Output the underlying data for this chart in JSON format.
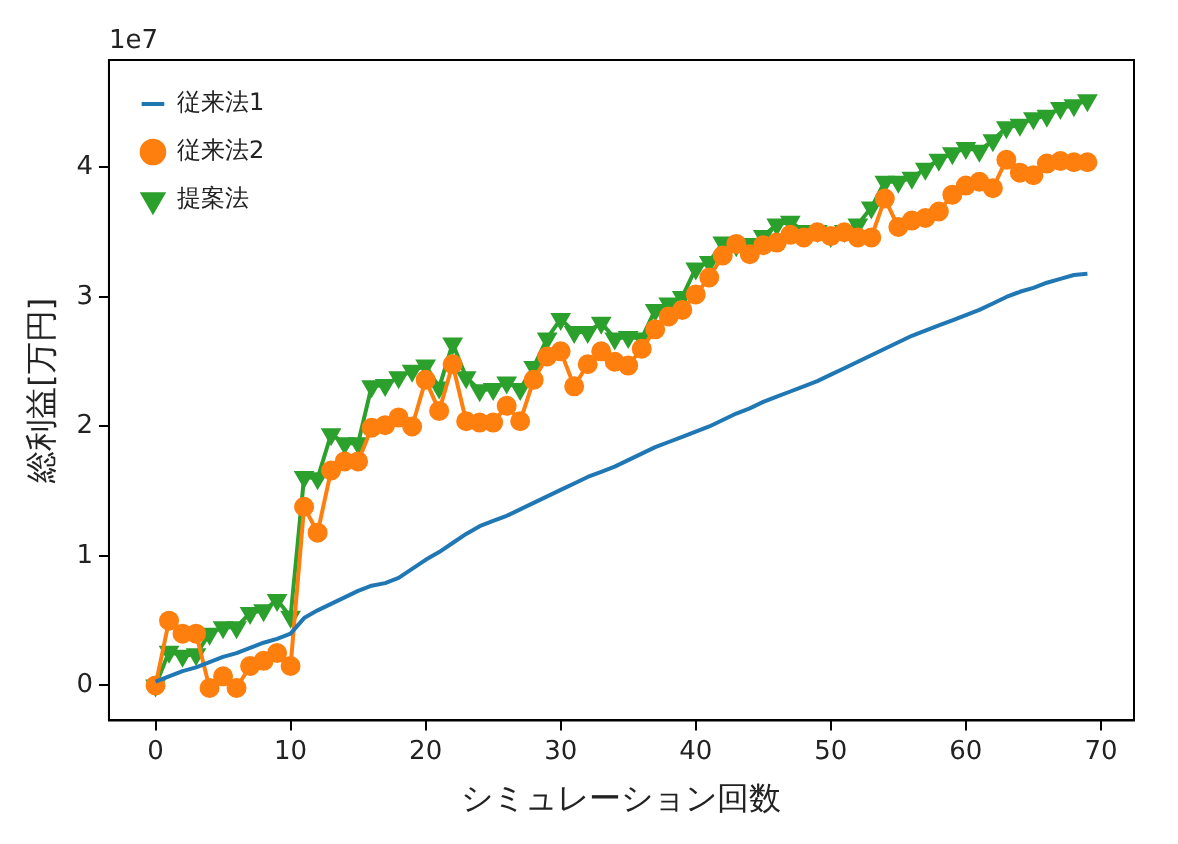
{
  "chart_data": {
    "type": "line",
    "xlabel": "シミュレーション回数",
    "ylabel": "総利益[万円]",
    "annotations": [
      "1e7"
    ],
    "x": [
      0,
      1,
      2,
      3,
      4,
      5,
      6,
      7,
      8,
      9,
      10,
      11,
      12,
      13,
      14,
      15,
      16,
      17,
      18,
      19,
      20,
      21,
      22,
      23,
      24,
      25,
      26,
      27,
      28,
      29,
      30,
      31,
      32,
      33,
      34,
      35,
      36,
      37,
      38,
      39,
      40,
      41,
      42,
      43,
      44,
      45,
      46,
      47,
      48,
      49,
      50,
      51,
      52,
      53,
      54,
      55,
      56,
      57,
      58,
      59,
      60,
      61,
      62,
      63,
      64,
      65,
      66,
      67,
      68,
      69
    ],
    "xlim": [
      -3.45,
      72.45
    ],
    "xticks": [
      0,
      10,
      20,
      30,
      40,
      50,
      60,
      70
    ],
    "ylim": [
      -0.27,
      4.83
    ],
    "yticks": [
      0,
      1,
      2,
      3,
      4
    ],
    "grid": false,
    "legend": "top left",
    "series": [
      {
        "name": "従来法1",
        "color": "#1f77b4",
        "marker": "none",
        "values": [
          0.03,
          0.07,
          0.11,
          0.14,
          0.18,
          0.22,
          0.25,
          0.29,
          0.33,
          0.36,
          0.4,
          0.52,
          0.58,
          0.63,
          0.68,
          0.73,
          0.77,
          0.79,
          0.83,
          0.9,
          0.97,
          1.03,
          1.1,
          1.17,
          1.23,
          1.27,
          1.31,
          1.36,
          1.41,
          1.46,
          1.51,
          1.56,
          1.61,
          1.65,
          1.69,
          1.74,
          1.79,
          1.84,
          1.88,
          1.92,
          1.96,
          2.0,
          2.05,
          2.1,
          2.14,
          2.19,
          2.23,
          2.27,
          2.31,
          2.35,
          2.4,
          2.45,
          2.5,
          2.55,
          2.6,
          2.65,
          2.7,
          2.74,
          2.78,
          2.82,
          2.86,
          2.9,
          2.95,
          3.0,
          3.04,
          3.07,
          3.11,
          3.14,
          3.17,
          3.18
        ]
      },
      {
        "name": "従来法2",
        "color": "#ff7f0e",
        "marker": "circle",
        "values": [
          0.0,
          0.5,
          0.4,
          0.4,
          -0.02,
          0.07,
          -0.02,
          0.15,
          0.19,
          0.25,
          0.15,
          1.38,
          1.18,
          1.66,
          1.73,
          1.73,
          1.99,
          2.01,
          2.07,
          2.0,
          2.36,
          2.12,
          2.48,
          2.04,
          2.03,
          2.03,
          2.16,
          2.04,
          2.36,
          2.54,
          2.58,
          2.31,
          2.48,
          2.58,
          2.5,
          2.47,
          2.6,
          2.75,
          2.85,
          2.9,
          3.02,
          3.15,
          3.32,
          3.41,
          3.33,
          3.4,
          3.42,
          3.48,
          3.46,
          3.5,
          3.47,
          3.5,
          3.46,
          3.46,
          3.76,
          3.54,
          3.59,
          3.61,
          3.66,
          3.79,
          3.86,
          3.89,
          3.84,
          4.06,
          3.96,
          3.94,
          4.03,
          4.05,
          4.04,
          4.04
        ]
      },
      {
        "name": "提案法",
        "color": "#2ca02c",
        "marker": "triangle",
        "values": [
          0.0,
          0.26,
          0.23,
          0.24,
          0.4,
          0.45,
          0.45,
          0.56,
          0.58,
          0.66,
          0.53,
          1.61,
          1.6,
          1.94,
          1.87,
          1.87,
          2.31,
          2.32,
          2.38,
          2.43,
          2.47,
          2.3,
          2.64,
          2.38,
          2.28,
          2.29,
          2.34,
          2.29,
          2.46,
          2.68,
          2.83,
          2.73,
          2.73,
          2.8,
          2.68,
          2.69,
          2.68,
          2.9,
          2.95,
          3.0,
          3.22,
          3.27,
          3.42,
          3.4,
          3.41,
          3.47,
          3.56,
          3.58,
          3.51,
          3.51,
          3.47,
          3.51,
          3.56,
          3.69,
          3.89,
          3.89,
          3.92,
          3.99,
          4.06,
          4.11,
          4.15,
          4.13,
          4.21,
          4.31,
          4.33,
          4.38,
          4.4,
          4.46,
          4.48,
          4.52
        ]
      }
    ]
  }
}
